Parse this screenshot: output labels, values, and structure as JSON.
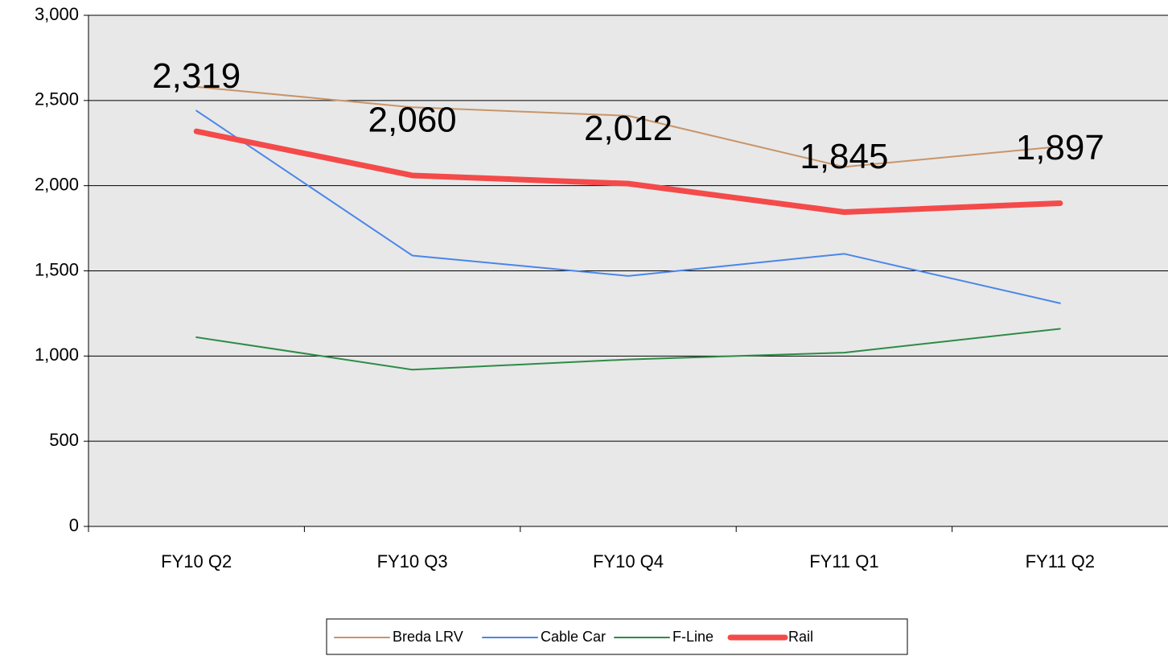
{
  "chart_data": {
    "type": "line",
    "categories": [
      "FY10 Q2",
      "FY10 Q3",
      "FY10 Q4",
      "FY11 Q1",
      "FY11 Q2"
    ],
    "series": [
      {
        "name": "Breda LRV",
        "color": "#c8956a",
        "values": [
          2580,
          2460,
          2410,
          2110,
          2230
        ]
      },
      {
        "name": "Cable Car",
        "color": "#4a86e8",
        "values": [
          2440,
          1590,
          1470,
          1600,
          1310
        ]
      },
      {
        "name": "F-Line",
        "color": "#2e8b47",
        "values": [
          1110,
          920,
          980,
          1020,
          1160
        ]
      },
      {
        "name": "Rail",
        "color": "#f44a4a",
        "values": [
          2319,
          2060,
          2012,
          1845,
          1897
        ],
        "value_labels": [
          "2,319",
          "2,060",
          "2,012",
          "1,845",
          "1,897"
        ]
      }
    ],
    "ylim": [
      0,
      3000
    ],
    "yticks": [
      0,
      500,
      {
        "value": 1000,
        "label": "1,000"
      },
      {
        "value": 1500,
        "label": "1,500"
      },
      {
        "value": 2000,
        "label": "2,000"
      },
      {
        "value": 2500,
        "label": "2,500"
      },
      {
        "value": 3000,
        "label": "3,000"
      }
    ],
    "grid": true,
    "legend": "bottom"
  }
}
